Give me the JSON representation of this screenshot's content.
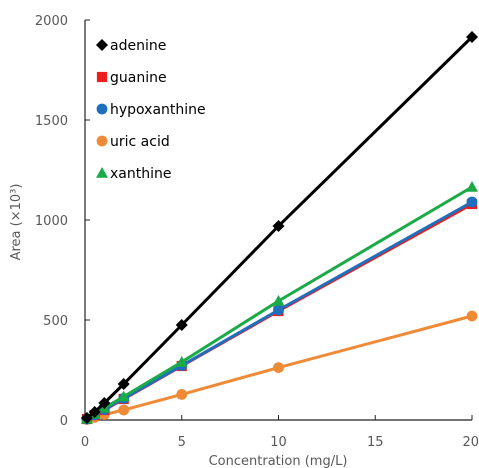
{
  "chart_data": {
    "type": "line",
    "xlabel": "Concentration (mg/L)",
    "ylabel": "Area (×10³)",
    "xlim": [
      0,
      20
    ],
    "ylim": [
      0,
      2000
    ],
    "xticks": [
      0,
      5,
      10,
      15,
      20
    ],
    "yticks": [
      0,
      500,
      1000,
      1500,
      2000
    ],
    "grid": false,
    "legend_position": "top-left",
    "x": [
      0.1,
      0.5,
      1,
      2,
      5,
      10,
      20
    ],
    "series": [
      {
        "name": "adenine",
        "color": "#000000",
        "marker": "diamond",
        "values": [
          10,
          40,
          85,
          180,
          475,
          970,
          1915
        ]
      },
      {
        "name": "guanine",
        "color": "#ee1c1c",
        "marker": "square",
        "values": [
          5,
          25,
          50,
          105,
          270,
          545,
          1080
        ]
      },
      {
        "name": "hypoxanthine",
        "color": "#1f6fbf",
        "marker": "circle",
        "values": [
          5,
          26,
          52,
          108,
          272,
          550,
          1090
        ]
      },
      {
        "name": "uric acid",
        "color": "#ef8a36",
        "marker": "circle",
        "values": [
          3,
          13,
          27,
          50,
          128,
          262,
          520
        ]
      },
      {
        "name": "xanthine",
        "color": "#1aaa48",
        "marker": "triangle",
        "values": [
          6,
          30,
          60,
          117,
          290,
          595,
          1165
        ]
      }
    ]
  }
}
